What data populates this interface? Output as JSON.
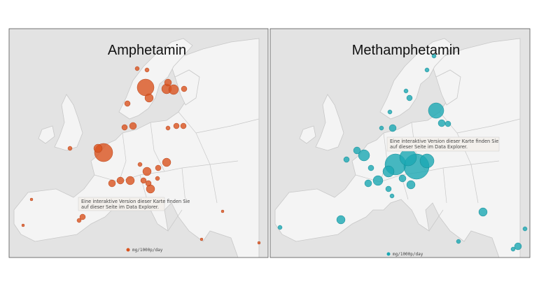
{
  "panels": [
    {
      "title": "Amphetamin",
      "note": [
        "Eine interaktive Version dieser Karte finden Sie",
        "auf dieser Seite im Data Explorer."
      ],
      "legend": "mg/1000p/day"
    },
    {
      "title": "Methamphetamin",
      "note": [
        "Eine interaktive Version dieser Karte finden Sie",
        "auf dieser Seite im Data Explorer."
      ],
      "legend": "mg/1000p/day"
    }
  ]
}
